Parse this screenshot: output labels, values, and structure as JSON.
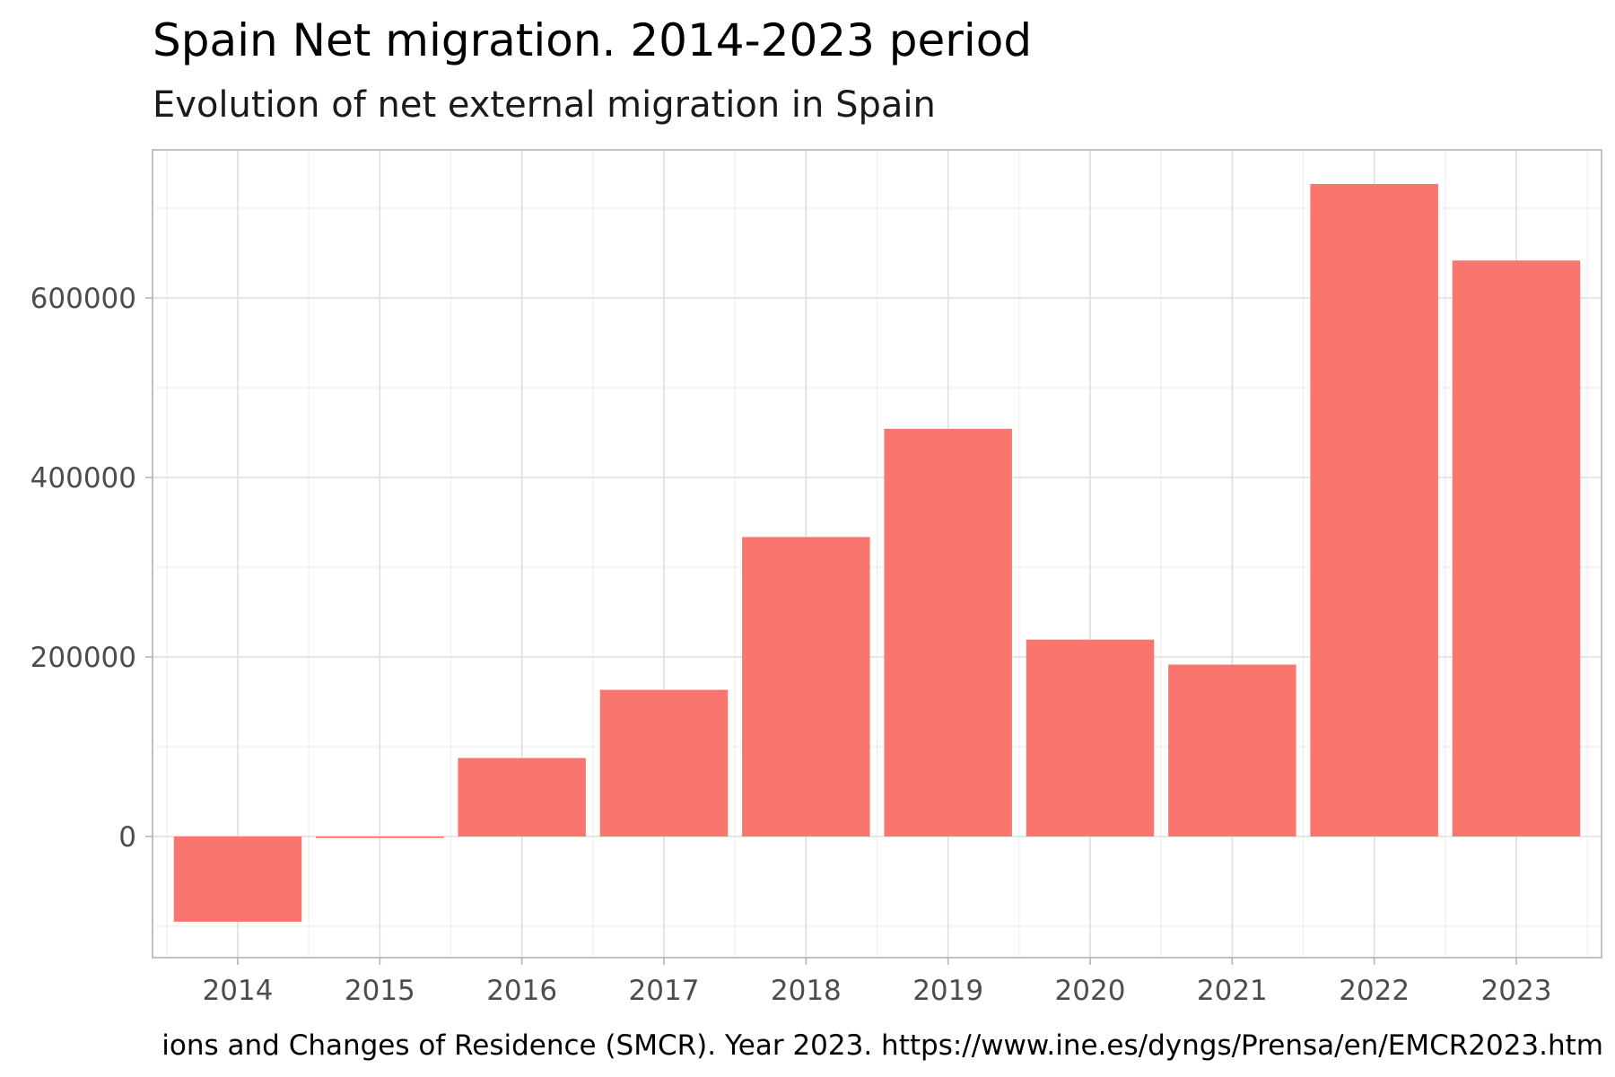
{
  "chart_data": {
    "type": "bar",
    "title": "Spain Net migration. 2014-2023 period",
    "subtitle": "Evolution of net external migration in Spain",
    "caption": "ions and Changes of Residence (SMCR). Year 2023. https://www.ine.es/dyngs/Prensa/en/EMCR2023.htm",
    "xlabel": "",
    "ylabel": "",
    "categories": [
      "2014",
      "2015",
      "2016",
      "2017",
      "2018",
      "2019",
      "2020",
      "2021",
      "2022",
      "2023"
    ],
    "values": [
      -94976,
      -1761,
      87422,
      163407,
      333672,
      454232,
      219337,
      191509,
      727005,
      641745
    ],
    "ylim": [
      -135000,
      765000
    ],
    "yticks": [
      0,
      200000,
      400000,
      600000
    ],
    "ytick_labels": [
      "0",
      "200000",
      "400000",
      "600000"
    ],
    "grid": true,
    "bar_color": "#F8766D",
    "panel_border_color": "#b3b3b3",
    "grid_color": "#dedede"
  }
}
